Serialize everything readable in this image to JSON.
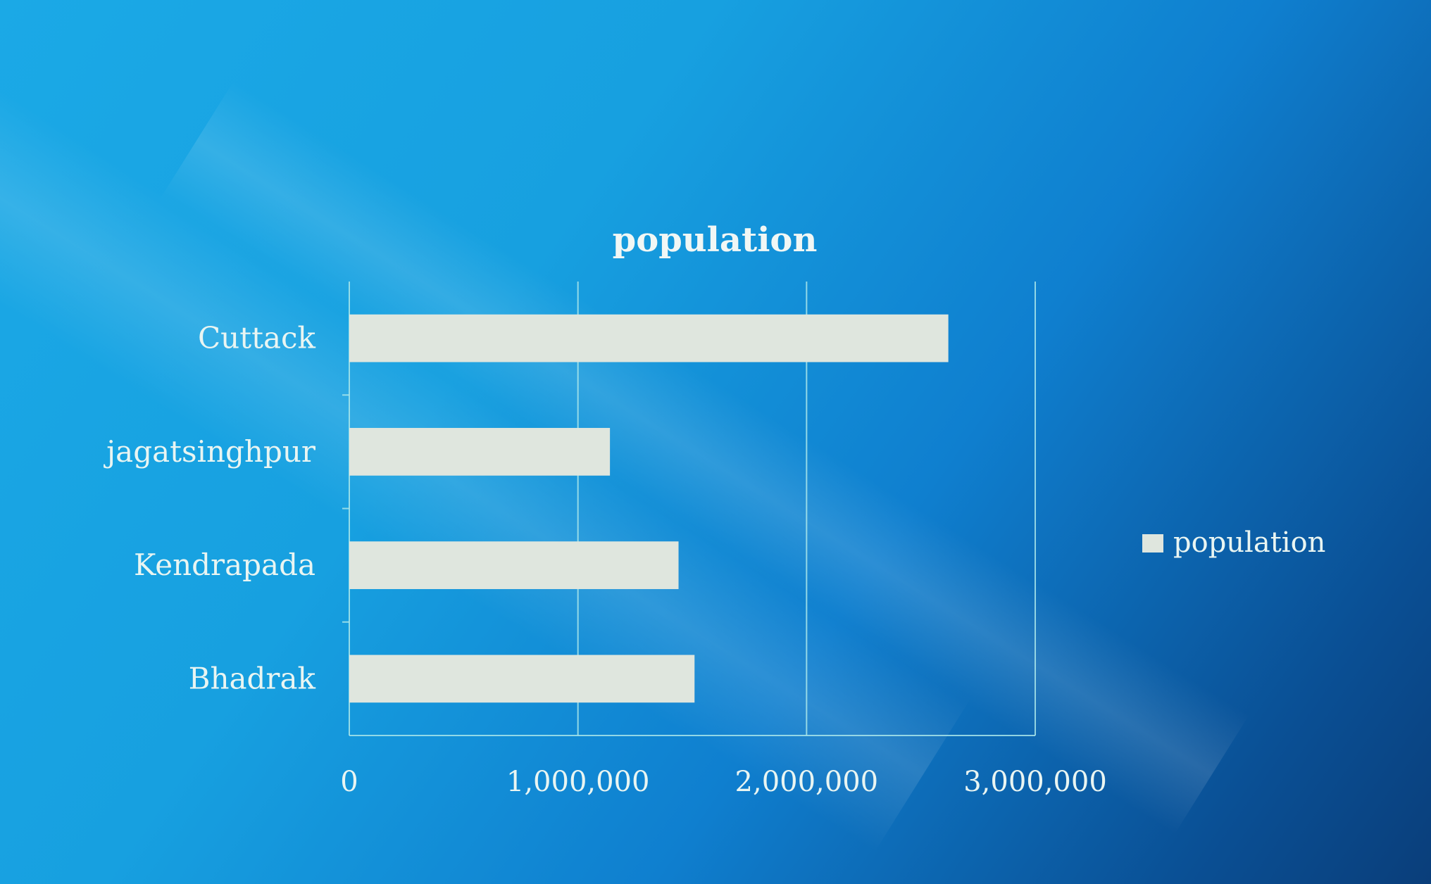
{
  "chart_data": {
    "type": "bar",
    "orientation": "horizontal",
    "title": "population",
    "categories": [
      "Cuttack",
      "jagatsinghpur",
      "Kendrapada",
      "Bhadrak"
    ],
    "series": [
      {
        "name": "population",
        "values": [
          2620000,
          1140000,
          1440000,
          1510000
        ]
      }
    ],
    "xlim": [
      0,
      3000000
    ],
    "xticks": [
      "0",
      "1,000,000",
      "2,000,000",
      "3,000,000"
    ],
    "grid": true,
    "legend": "right",
    "colors": {
      "bar": "#dfe6de",
      "text": "#e9f5f2",
      "axis": "#a9e6ea"
    }
  }
}
